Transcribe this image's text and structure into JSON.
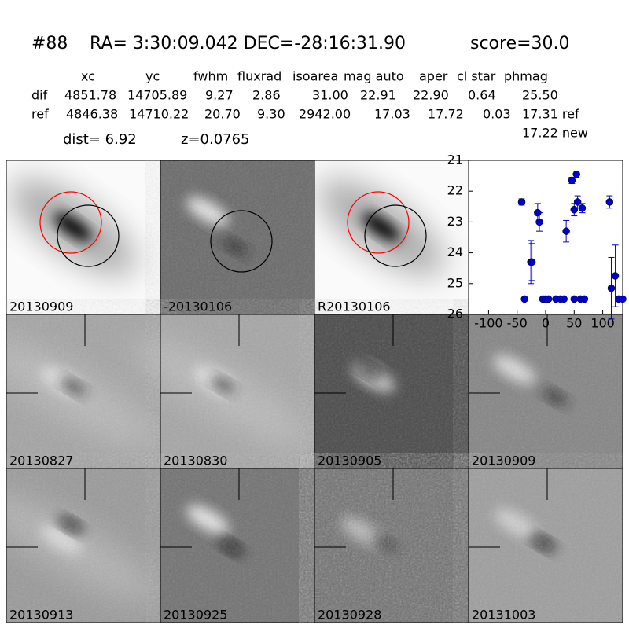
{
  "header": {
    "id": "#88",
    "coords": "RA= 3:30:09.042 DEC=-28:16:31.90",
    "score": "score=30.0"
  },
  "table": {
    "columns": [
      "xc",
      "yc",
      "fwhm",
      "fluxrad",
      "isoarea",
      "mag auto",
      "aper",
      "cl star",
      "phmag"
    ],
    "rows": [
      [
        "dif",
        "4851.78",
        "14705.89",
        "9.27",
        "2.86",
        "31.00",
        "22.91",
        "22.90",
        "0.64",
        "25.50"
      ],
      [
        "ref",
        "4846.38",
        "14710.22",
        "20.70",
        "9.30",
        "2942.00",
        "17.03",
        "17.72",
        "0.03",
        "17.31 ref"
      ]
    ],
    "extra": "17.22 new"
  },
  "dist": "dist=  6.92",
  "z": "z=0.0765",
  "panels": [
    {
      "label": "20130909"
    },
    {
      "label": "-20130106"
    },
    {
      "label": "R20130106"
    },
    {
      "label": "20130827"
    },
    {
      "label": "20130830"
    },
    {
      "label": "20130905"
    },
    {
      "label": "20130909",
      "color": "#ff0000"
    },
    {
      "label": "20130913"
    },
    {
      "label": "20130925"
    },
    {
      "label": "20130928"
    },
    {
      "label": "20131003"
    }
  ],
  "chart_data": {
    "type": "scatter",
    "xlim": [
      -135,
      135
    ],
    "ylim": [
      26,
      21
    ],
    "xticks": [
      -100,
      -50,
      0,
      50,
      100
    ],
    "yticks": [
      21,
      22,
      23,
      24,
      25,
      26
    ],
    "series": [
      {
        "color": "#0000cc",
        "x": [
          -42,
          -37,
          -26,
          -24,
          -14,
          -11,
          -5,
          0,
          5,
          18,
          26,
          32,
          36,
          46,
          50,
          50,
          54,
          56,
          61,
          64,
          68,
          112,
          115,
          122,
          128,
          135
        ],
        "values": [
          22.35,
          25.5,
          24.3,
          24.3,
          22.7,
          23.0,
          25.5,
          25.5,
          25.5,
          25.5,
          25.5,
          25.5,
          23.3,
          21.65,
          25.5,
          22.6,
          21.45,
          22.35,
          25.5,
          22.55,
          25.5,
          22.35,
          25.15,
          24.75,
          25.5,
          25.5
        ],
        "errors": [
          0.1,
          null,
          0.7,
          0.6,
          0.3,
          0.3,
          null,
          null,
          null,
          null,
          null,
          null,
          0.35,
          0.1,
          null,
          0.2,
          0.1,
          0.2,
          null,
          0.15,
          null,
          0.2,
          1.0,
          1.0,
          null,
          null
        ]
      }
    ]
  }
}
